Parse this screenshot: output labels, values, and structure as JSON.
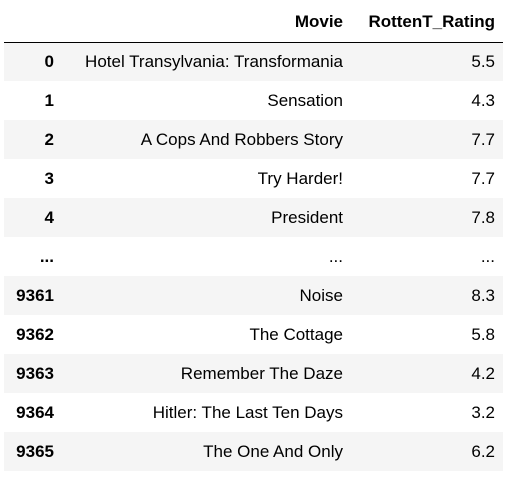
{
  "table": {
    "columns": [
      "",
      "Movie",
      "RottenT_Rating"
    ],
    "rows": [
      {
        "index": "0",
        "movie": "Hotel Transylvania: Transformania",
        "rating": "5.5"
      },
      {
        "index": "1",
        "movie": "Sensation",
        "rating": "4.3"
      },
      {
        "index": "2",
        "movie": "A Cops And Robbers Story",
        "rating": "7.7"
      },
      {
        "index": "3",
        "movie": "Try Harder!",
        "rating": "7.7"
      },
      {
        "index": "4",
        "movie": "President",
        "rating": "7.8"
      },
      {
        "index": "...",
        "movie": "...",
        "rating": "..."
      },
      {
        "index": "9361",
        "movie": "Noise",
        "rating": "8.3"
      },
      {
        "index": "9362",
        "movie": "The Cottage",
        "rating": "5.8"
      },
      {
        "index": "9363",
        "movie": "Remember The Daze",
        "rating": "4.2"
      },
      {
        "index": "9364",
        "movie": "Hitler: The Last Ten Days",
        "rating": "3.2"
      },
      {
        "index": "9365",
        "movie": "The One And Only",
        "rating": "6.2"
      }
    ]
  }
}
